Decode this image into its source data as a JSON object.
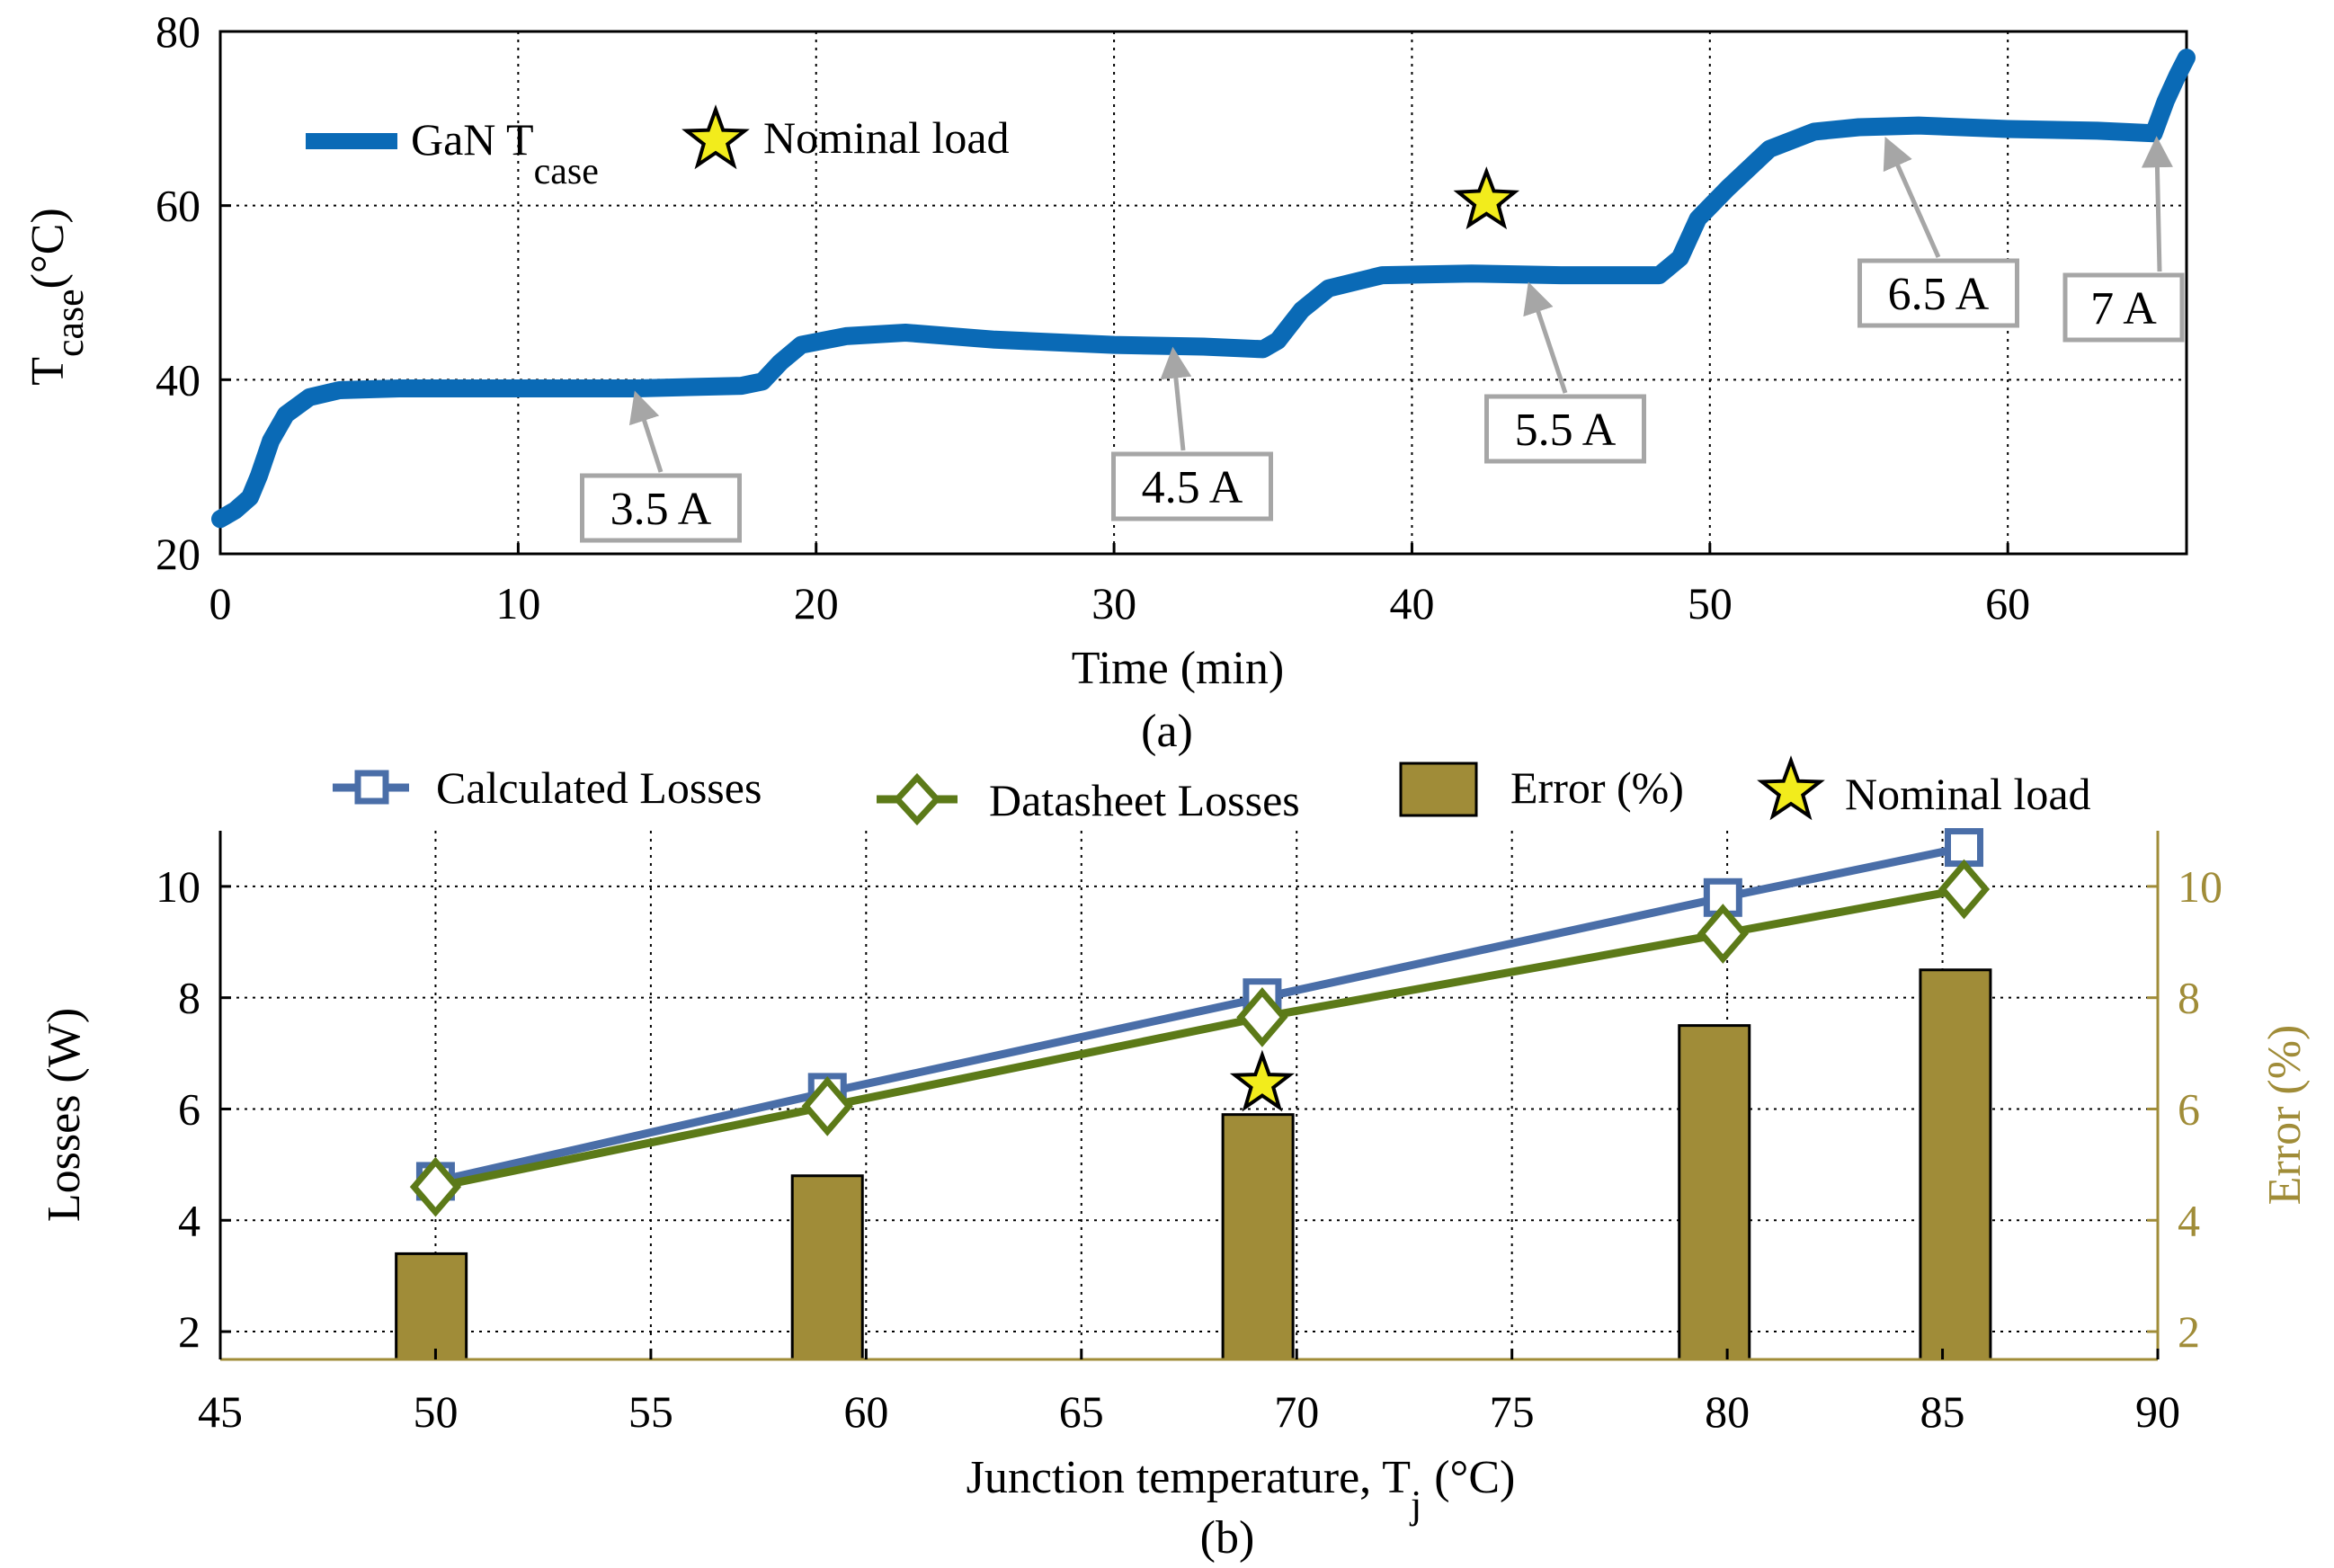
{
  "colors": {
    "temp_line": "#0a6ab6",
    "calc_losses": "#4a6ea8",
    "datasheet_losses": "#5c7a18",
    "error_bar": "#a08c38",
    "error_axis": "#a08c38",
    "star_fill": "#f2ec1c",
    "callout_border": "#a6a6a6",
    "arrow": "#a6a6a6"
  },
  "chart_data": [
    {
      "id": "a",
      "type": "line",
      "caption": "(a)",
      "xlabel": "Time (min)",
      "ylabel": "T",
      "ylabel_sub": "case",
      "ylabel_unit": "(°C)",
      "xlim": [
        0,
        66
      ],
      "ylim": [
        20,
        80
      ],
      "xticks": [
        0,
        10,
        20,
        30,
        40,
        50,
        60
      ],
      "yticks": [
        20,
        40,
        60,
        80
      ],
      "grid": true,
      "legend": {
        "position": "top-left",
        "series_label": "GaN T",
        "series_label_sub": "case",
        "marker_label": "Nominal load"
      },
      "series": [
        {
          "name": "GaN Tcase",
          "points": [
            [
              0,
              24
            ],
            [
              0.5,
              25
            ],
            [
              1.0,
              26.5
            ],
            [
              1.3,
              29
            ],
            [
              1.7,
              33
            ],
            [
              2.2,
              36
            ],
            [
              3.0,
              38
            ],
            [
              4.0,
              38.8
            ],
            [
              6.0,
              39
            ],
            [
              10.0,
              39
            ],
            [
              14.0,
              39
            ],
            [
              17.5,
              39.3
            ],
            [
              18.2,
              39.8
            ],
            [
              18.8,
              42
            ],
            [
              19.5,
              44
            ],
            [
              21.0,
              45
            ],
            [
              23.0,
              45.4
            ],
            [
              26.0,
              44.6
            ],
            [
              30.0,
              44
            ],
            [
              33.0,
              43.8
            ],
            [
              35.0,
              43.5
            ],
            [
              35.5,
              44.5
            ],
            [
              36.3,
              48
            ],
            [
              37.2,
              50.5
            ],
            [
              39.0,
              52
            ],
            [
              42.0,
              52.2
            ],
            [
              45.0,
              52
            ],
            [
              48.3,
              52
            ],
            [
              49.0,
              54
            ],
            [
              49.6,
              58.5
            ],
            [
              50.6,
              62
            ],
            [
              52.0,
              66.5
            ],
            [
              53.5,
              68.5
            ],
            [
              55.0,
              69
            ],
            [
              57.0,
              69.2
            ],
            [
              60.0,
              68.8
            ],
            [
              63.0,
              68.6
            ],
            [
              64.9,
              68.3
            ],
            [
              65.3,
              72
            ],
            [
              65.7,
              75
            ],
            [
              66.0,
              77
            ]
          ]
        }
      ],
      "nominal_marker": [
        42.5,
        60.5
      ],
      "annotations": [
        {
          "text": "3.5 A",
          "point": [
            14,
            39
          ]
        },
        {
          "text": "4.5 A",
          "point": [
            32,
            44
          ]
        },
        {
          "text": "5.5 A",
          "point": [
            44,
            51.5
          ]
        },
        {
          "text": "6.5 A",
          "point": [
            56,
            68
          ]
        },
        {
          "text": "7 A",
          "point": [
            65,
            68
          ]
        }
      ]
    },
    {
      "id": "b",
      "type": "bar+line",
      "caption": "(b)",
      "xlabel": "Junction temperature, T",
      "xlabel_sub": "j",
      "xlabel_unit": "(°C)",
      "ylabel": "Losses (W)",
      "ylabel_right": "Error (%)",
      "xlim": [
        45,
        90
      ],
      "ylim": [
        1.5,
        11
      ],
      "ylim_right": [
        1.5,
        11
      ],
      "xticks": [
        45,
        50,
        55,
        60,
        65,
        70,
        75,
        80,
        85,
        90
      ],
      "yticks": [
        2,
        4,
        6,
        8,
        10
      ],
      "yticks_right": [
        2,
        4,
        6,
        8,
        10
      ],
      "grid": true,
      "legend": {
        "position": "top",
        "entries": [
          "Calculated Losses",
          "Datasheet Losses",
          "Error (%)",
          "Nominal load"
        ]
      },
      "series": [
        {
          "name": "Calculated Losses",
          "x": [
            50,
            59.1,
            69.2,
            79.9,
            85.5
          ],
          "values": [
            4.7,
            6.3,
            8.0,
            9.8,
            10.7
          ]
        },
        {
          "name": "Datasheet Losses",
          "x": [
            50,
            59.1,
            69.2,
            79.9,
            85.5
          ],
          "values": [
            4.6,
            6.05,
            7.65,
            9.15,
            9.95
          ]
        }
      ],
      "bars": {
        "name": "Error (%)",
        "x": [
          49.9,
          59.1,
          69.1,
          79.7,
          85.3
        ],
        "values": [
          3.4,
          4.8,
          5.9,
          7.5,
          8.5
        ]
      },
      "nominal_marker": [
        69.2,
        6.45
      ]
    }
  ]
}
